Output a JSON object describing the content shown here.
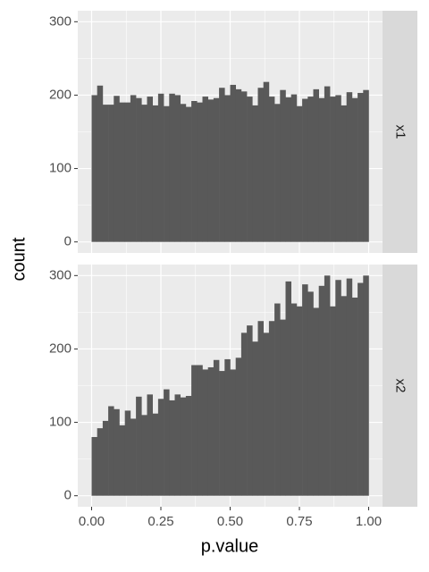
{
  "chart_data": {
    "type": "histogram",
    "xlabel": "p.value",
    "ylabel": "count",
    "color": "#595959",
    "grid": true,
    "xlim": [
      -0.05,
      1.05
    ],
    "xticks": [
      {
        "value": 0,
        "label": "0.00"
      },
      {
        "value": 0.25,
        "label": "0.25"
      },
      {
        "value": 0.5,
        "label": "0.50"
      },
      {
        "value": 0.75,
        "label": "0.75"
      },
      {
        "value": 1,
        "label": "1.00"
      }
    ],
    "ylim": [
      -15,
      315
    ],
    "yticks": [
      0,
      100,
      200,
      300
    ],
    "bins": [
      0,
      0.02,
      0.04,
      0.06,
      0.08,
      0.1,
      0.12,
      0.14,
      0.16,
      0.18,
      0.2,
      0.22,
      0.24,
      0.26,
      0.28,
      0.3,
      0.32,
      0.34,
      0.36,
      0.38,
      0.4,
      0.42,
      0.44,
      0.46,
      0.48,
      0.5,
      0.52,
      0.54,
      0.56,
      0.58,
      0.6,
      0.62,
      0.64,
      0.66,
      0.68,
      0.7,
      0.72,
      0.74,
      0.76,
      0.78,
      0.8,
      0.82,
      0.84,
      0.86,
      0.88,
      0.9,
      0.92,
      0.94,
      0.96,
      0.98,
      1
    ],
    "series": [
      {
        "name": "x1",
        "values": [
          200,
          213,
          187,
          187,
          199,
          190,
          190,
          200,
          196,
          187,
          198,
          186,
          202,
          185,
          202,
          200,
          188,
          184,
          192,
          190,
          198,
          194,
          196,
          210,
          200,
          214,
          208,
          205,
          198,
          186,
          210,
          218,
          198,
          188,
          207,
          197,
          201,
          185,
          195,
          198,
          208,
          196,
          212,
          198,
          200,
          186,
          204,
          196,
          203,
          207
        ]
      },
      {
        "name": "x2",
        "values": [
          80,
          92,
          102,
          122,
          118,
          96,
          116,
          105,
          135,
          110,
          138,
          112,
          132,
          145,
          130,
          138,
          134,
          136,
          178,
          178,
          172,
          175,
          185,
          170,
          186,
          172,
          188,
          222,
          232,
          210,
          238,
          222,
          238,
          262,
          240,
          292,
          262,
          258,
          288,
          278,
          256,
          286,
          300,
          258,
          294,
          272,
          296,
          270,
          290,
          300
        ]
      }
    ]
  }
}
